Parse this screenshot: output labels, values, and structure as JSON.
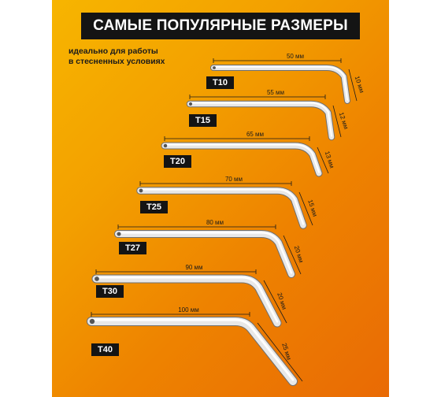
{
  "title": "САМЫЕ ПОПУЛЯРНЫЕ РАЗМЕРЫ",
  "subtitle": [
    "идеально для работы",
    "в стесненных условиях"
  ],
  "colors": {
    "background_top": "#f7b500",
    "background_bottom": "#e96a05",
    "badge": "#141414",
    "key_metal": "#e8e8e8"
  },
  "keys": [
    {
      "size": "T10",
      "long_arm": "50 мм",
      "short_arm": "10 мм"
    },
    {
      "size": "T15",
      "long_arm": "55 мм",
      "short_arm": "12 мм"
    },
    {
      "size": "T20",
      "long_arm": "65 мм",
      "short_arm": "13 мм"
    },
    {
      "size": "T25",
      "long_arm": "70 мм",
      "short_arm": "15 мм"
    },
    {
      "size": "T27",
      "long_arm": "80 мм",
      "short_arm": "20 мм"
    },
    {
      "size": "T30",
      "long_arm": "90 мм",
      "short_arm": "20 мм"
    },
    {
      "size": "T40",
      "long_arm": "100 мм",
      "short_arm": "25 мм"
    }
  ]
}
